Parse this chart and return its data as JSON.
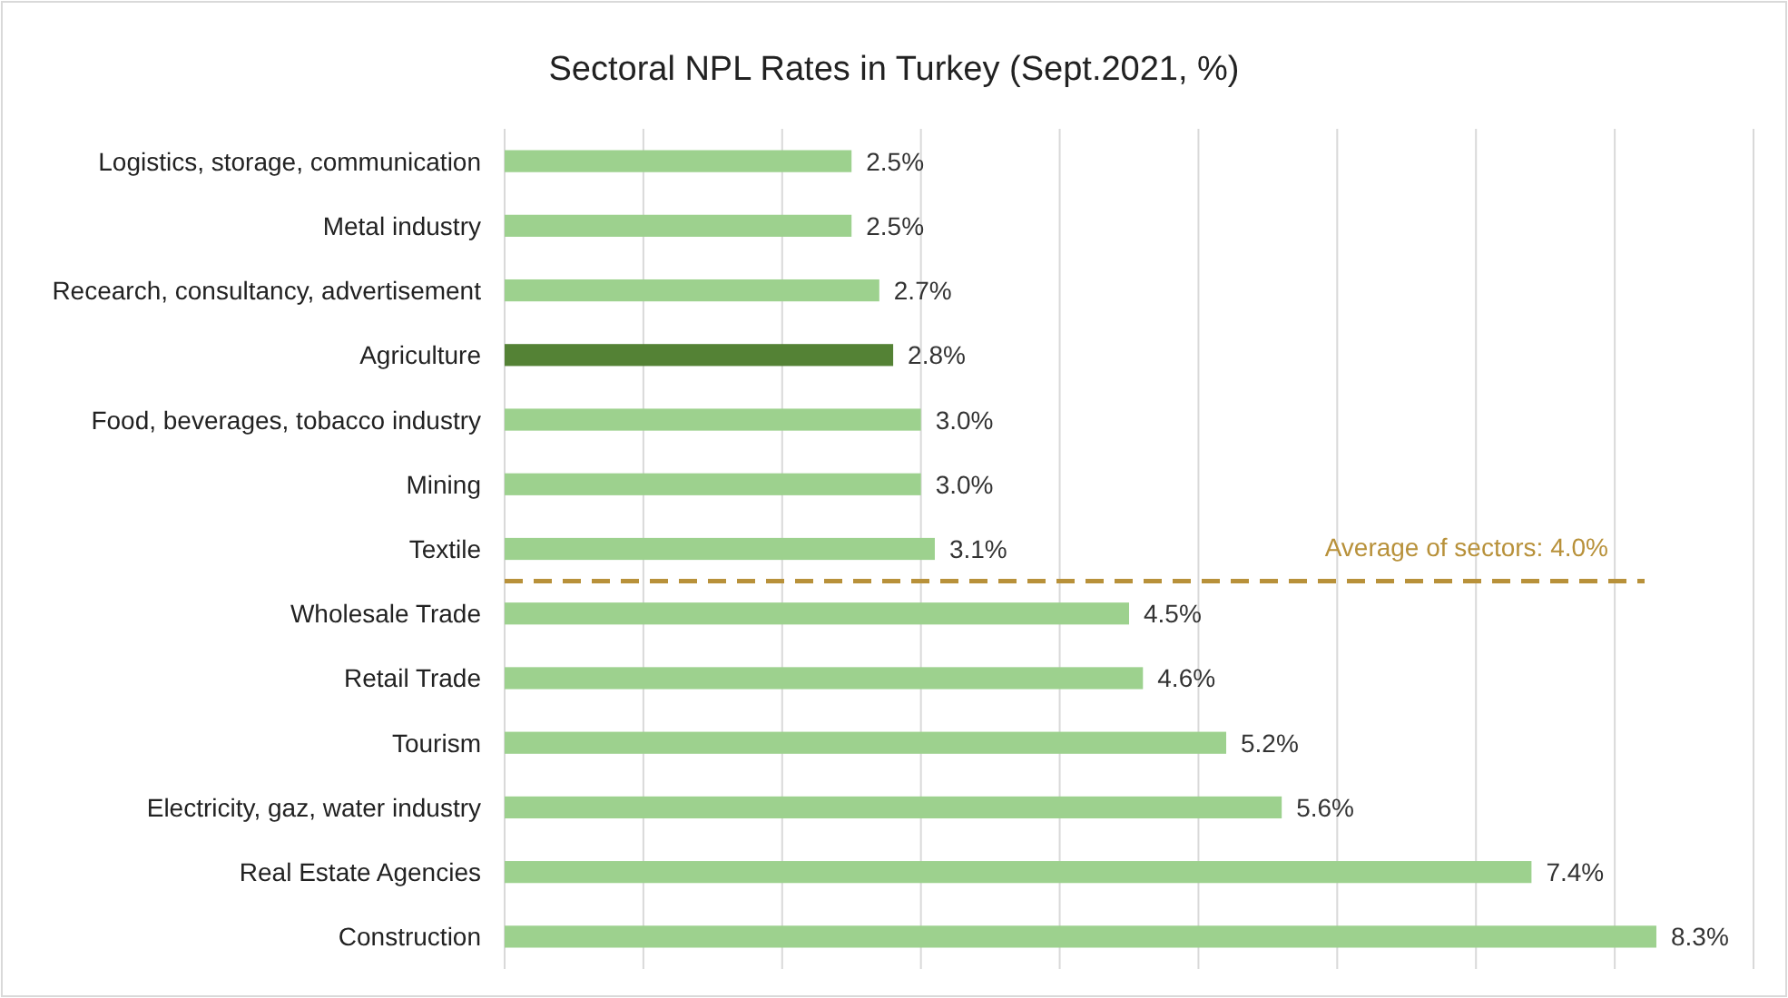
{
  "chart_data": {
    "type": "bar",
    "orientation": "horizontal",
    "title": "Sectoral NPL Rates in Turkey (Sept.2021, %)",
    "categories": [
      "Logistics, storage, communication",
      "Metal industry",
      "Recearch, consultancy, advertisement",
      "Agriculture",
      "Food, beverages, tobacco industry",
      "Mining",
      "Textile",
      "Wholesale Trade",
      "Retail Trade",
      "Tourism",
      "Electricity, gaz, water industry",
      "Real Estate Agencies",
      "Construction"
    ],
    "values": [
      2.5,
      2.5,
      2.7,
      2.8,
      3.0,
      3.0,
      3.1,
      4.5,
      4.6,
      5.2,
      5.6,
      7.4,
      8.3
    ],
    "value_labels": [
      "2.5%",
      "2.5%",
      "2.7%",
      "2.8%",
      "3.0%",
      "3.0%",
      "3.1%",
      "4.5%",
      "4.6%",
      "5.2%",
      "5.6%",
      "7.4%",
      "8.3%"
    ],
    "colors": [
      "#9dd18e",
      "#9dd18e",
      "#9dd18e",
      "#548235",
      "#9dd18e",
      "#9dd18e",
      "#9dd18e",
      "#9dd18e",
      "#9dd18e",
      "#9dd18e",
      "#9dd18e",
      "#9dd18e",
      "#9dd18e"
    ],
    "xlim": [
      0,
      9
    ],
    "xticks": [
      {
        "value": 0,
        "label": null
      },
      {
        "value": 1,
        "label": null
      },
      {
        "value": 2,
        "label": null
      },
      {
        "value": 3,
        "label": null
      },
      {
        "value": 4,
        "label": null
      },
      {
        "value": 5,
        "label": null
      },
      {
        "value": 6,
        "label": null
      },
      {
        "value": 7,
        "label": null
      },
      {
        "value": 8,
        "label": null
      },
      {
        "value": 9,
        "label": null
      }
    ],
    "tick_labels": "y",
    "grid": "x",
    "ref_lines": [
      {
        "axis": "y",
        "value": "Textile",
        "label": "Average of sectors: 4.0%",
        "color": "#b8913a",
        "line_style": "dashed"
      }
    ]
  }
}
